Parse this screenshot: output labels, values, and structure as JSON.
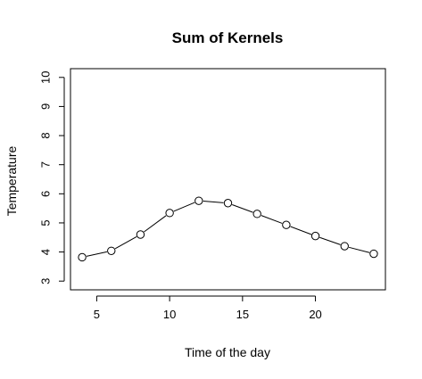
{
  "chart_data": {
    "type": "line",
    "title": "Sum of Kernels",
    "xlabel": "Time of the day",
    "ylabel": "Temperature",
    "x": [
      4,
      6,
      8,
      10,
      12,
      14,
      16,
      18,
      20,
      22,
      24
    ],
    "y": [
      3.82,
      4.04,
      4.6,
      5.34,
      5.76,
      5.68,
      5.31,
      4.93,
      4.55,
      4.2,
      3.94
    ],
    "xlim": [
      3.2,
      24.8
    ],
    "ylim": [
      2.7,
      10.3
    ],
    "xticks": [
      5,
      10,
      15,
      20
    ],
    "yticks": [
      3,
      4,
      5,
      6,
      7,
      8,
      9,
      10
    ],
    "markers": "open-circle",
    "grid": false
  }
}
